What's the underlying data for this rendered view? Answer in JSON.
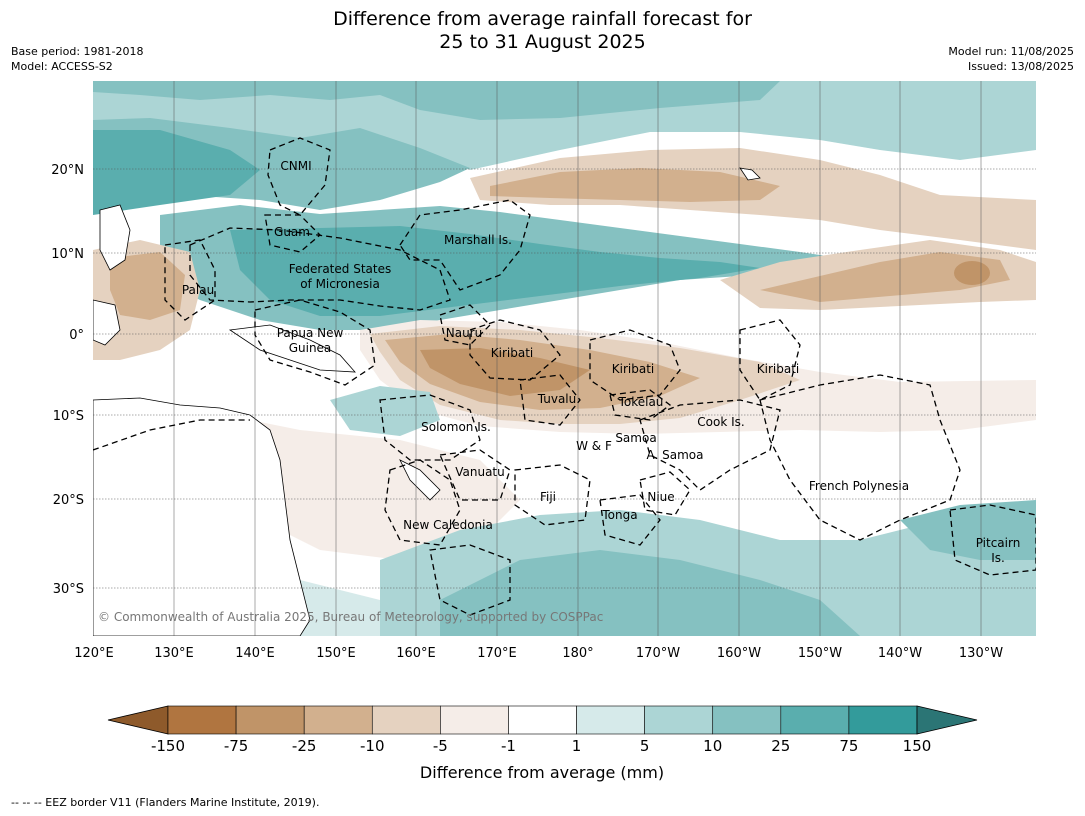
{
  "title": {
    "line1": "Difference from average rainfall forecast for",
    "line2": "25 to 31 August 2025"
  },
  "meta": {
    "base_period": "Base period: 1981-2018",
    "model": "Model: ACCESS-S2",
    "model_run": "Model run: 11/08/2025",
    "issued": "Issued: 13/08/2025"
  },
  "axes": {
    "lon_ticks": [
      "120°E",
      "130°E",
      "140°E",
      "150°E",
      "160°E",
      "170°E",
      "180°",
      "170°W",
      "160°W",
      "150°W",
      "140°W",
      "130°W"
    ],
    "lat_ticks": [
      "20°N",
      "10°N",
      "0°",
      "10°S",
      "20°S",
      "30°S"
    ]
  },
  "regions": [
    {
      "name": "cnmi",
      "text": "CNMI"
    },
    {
      "name": "guam",
      "text": "Guam"
    },
    {
      "name": "marshall-islands",
      "text": "Marshall Is."
    },
    {
      "name": "fsm-line1",
      "text": "Federated States"
    },
    {
      "name": "fsm-line2",
      "text": "of Micronesia"
    },
    {
      "name": "palau",
      "text": "Palau"
    },
    {
      "name": "png-line1",
      "text": "Papua New"
    },
    {
      "name": "png-line2",
      "text": "Guinea"
    },
    {
      "name": "nauru",
      "text": "Nauru"
    },
    {
      "name": "kiribati-west",
      "text": "Kiribati"
    },
    {
      "name": "kiribati-central",
      "text": "Kiribati"
    },
    {
      "name": "kiribati-east",
      "text": "Kiribati"
    },
    {
      "name": "tuvalu",
      "text": "Tuvalu"
    },
    {
      "name": "tokelau",
      "text": "Tokelau"
    },
    {
      "name": "cook-islands",
      "text": "Cook Is."
    },
    {
      "name": "solomon-islands",
      "text": "Solomon Is."
    },
    {
      "name": "wallis-futuna",
      "text": "W & F"
    },
    {
      "name": "samoa",
      "text": "Samoa"
    },
    {
      "name": "american-samoa",
      "text": "A. Samoa"
    },
    {
      "name": "vanuatu",
      "text": "Vanuatu"
    },
    {
      "name": "fiji",
      "text": "Fiji"
    },
    {
      "name": "niue",
      "text": "Niue"
    },
    {
      "name": "tonga",
      "text": "Tonga"
    },
    {
      "name": "french-polynesia",
      "text": "French Polynesia"
    },
    {
      "name": "new-caledonia",
      "text": "New Caledonia"
    },
    {
      "name": "pitcairn-line1",
      "text": "Pitcairn"
    },
    {
      "name": "pitcairn-line2",
      "text": "Is."
    }
  ],
  "copyright": "© Commonwealth of Australia 2025, Bureau of Meteorology, supported by COSPPac",
  "colorbar": {
    "title": "Difference from average (mm)",
    "ticks": [
      "-150",
      "-75",
      "-25",
      "-10",
      "-5",
      "-1",
      "1",
      "5",
      "10",
      "25",
      "75",
      "150"
    ],
    "colors": [
      "#b07540",
      "#c09468",
      "#d2b08e",
      "#e5d2c0",
      "#f5ede8",
      "#ffffff",
      "#d6eaea",
      "#acd5d5",
      "#85c1c1",
      "#5aaeae",
      "#339b9b"
    ],
    "under_color": "#8e5a2b",
    "over_color": "#2b7575"
  },
  "footnote": "-- -- -- EEZ border V11 (Flanders Marine Institute, 2019)."
}
